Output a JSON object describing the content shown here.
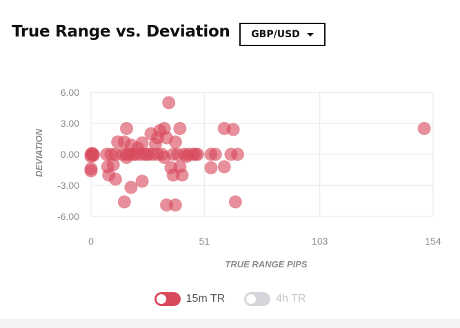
{
  "header": {
    "title": "True Range vs. Deviation",
    "pair": "GBP/USD"
  },
  "colors": {
    "series_15m": "#d94a5e",
    "series_4h": "#d4d6db",
    "grid": "#e6e6e6",
    "text": "#8a8a8a"
  },
  "legend": [
    {
      "label": "15m TR",
      "active": true
    },
    {
      "label": "4h TR",
      "active": false
    }
  ],
  "chart_data": {
    "type": "scatter",
    "xlabel": "TRUE RANGE PIPS",
    "ylabel": "DEVIATION",
    "xlim": [
      0,
      154
    ],
    "ylim": [
      -6,
      6
    ],
    "xticks": [
      "0",
      "51",
      "103",
      "154"
    ],
    "yticks": [
      "6.00",
      "3.00",
      "0.00",
      "-3.00",
      "-6.00"
    ],
    "grid": true,
    "series": [
      {
        "name": "15m TR",
        "points": [
          [
            0,
            0
          ],
          [
            0,
            -0.2
          ],
          [
            0,
            -1.4
          ],
          [
            0,
            -1.6
          ],
          [
            1,
            0
          ],
          [
            0.5,
            0.1
          ],
          [
            1,
            -0.1
          ],
          [
            7,
            0
          ],
          [
            7.5,
            -1.2
          ],
          [
            8,
            -2.0
          ],
          [
            9,
            0
          ],
          [
            10,
            -1.0
          ],
          [
            11,
            -2.4
          ],
          [
            11,
            0
          ],
          [
            12,
            1.2
          ],
          [
            14,
            0
          ],
          [
            15,
            -4.6
          ],
          [
            15,
            1.2
          ],
          [
            16,
            2.5
          ],
          [
            16,
            0
          ],
          [
            16,
            -0.3
          ],
          [
            17,
            0
          ],
          [
            18,
            0.9
          ],
          [
            18,
            -3.2
          ],
          [
            19,
            0
          ],
          [
            20,
            0
          ],
          [
            21,
            0.6
          ],
          [
            22,
            0
          ],
          [
            23,
            -2.6
          ],
          [
            23,
            1.1
          ],
          [
            24,
            0
          ],
          [
            25,
            0
          ],
          [
            26,
            0
          ],
          [
            27,
            2.0
          ],
          [
            28,
            0
          ],
          [
            29,
            1.0
          ],
          [
            30,
            0
          ],
          [
            30,
            1.6
          ],
          [
            31,
            2.3
          ],
          [
            32,
            0
          ],
          [
            33,
            2.5
          ],
          [
            33,
            -0.3
          ],
          [
            34,
            1.6
          ],
          [
            34,
            -4.9
          ],
          [
            35,
            5.0
          ],
          [
            36,
            -1.3
          ],
          [
            37,
            0
          ],
          [
            37,
            -2.0
          ],
          [
            38,
            -4.9
          ],
          [
            38,
            1.2
          ],
          [
            39,
            0
          ],
          [
            40,
            -1.2
          ],
          [
            40,
            2.5
          ],
          [
            41,
            -2.0
          ],
          [
            42,
            0
          ],
          [
            43,
            -0.2
          ],
          [
            44,
            0
          ],
          [
            46,
            0
          ],
          [
            47,
            0
          ],
          [
            48,
            0
          ],
          [
            54,
            0
          ],
          [
            54,
            -1.3
          ],
          [
            56,
            0
          ],
          [
            60,
            2.5
          ],
          [
            60,
            -1.2
          ],
          [
            63,
            0
          ],
          [
            64,
            2.4
          ],
          [
            65,
            -4.6
          ],
          [
            66,
            0
          ],
          [
            150,
            2.5
          ]
        ]
      },
      {
        "name": "4h TR",
        "points": []
      }
    ]
  }
}
